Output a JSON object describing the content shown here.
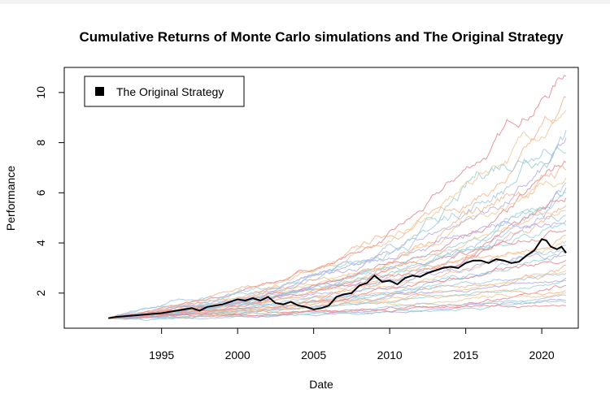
{
  "chart_data": {
    "type": "line",
    "title": "Cumulative Returns of Monte Carlo simulations and The Original Strategy",
    "xlabel": "Date",
    "ylabel": "Performance",
    "xlim": [
      1988.6,
      2022.4
    ],
    "ylim": [
      0.6,
      11.0
    ],
    "x_ticks": [
      1995,
      2000,
      2005,
      2010,
      2015,
      2020
    ],
    "y_ticks": [
      2,
      4,
      6,
      8,
      10
    ],
    "grid": false,
    "legend": {
      "position": "top-left",
      "entries": [
        {
          "label": "The Original Strategy",
          "color": "#000000"
        }
      ]
    },
    "simulation_colors": [
      "#e6828c",
      "#f5b48c",
      "#f0c896",
      "#a0c8e6",
      "#b4aae6",
      "#96d2d2"
    ],
    "simulation_endpoints": [
      10.65,
      9.8,
      9.3,
      8.5,
      8.2,
      7.6,
      7.2,
      6.9,
      6.6,
      6.4,
      6.2,
      6.0,
      5.8,
      5.5,
      5.3,
      5.1,
      4.9,
      4.7,
      4.5,
      4.3,
      4.1,
      3.9,
      3.7,
      3.5,
      3.3,
      3.1,
      2.9,
      2.8,
      2.6,
      2.5,
      2.3,
      2.1,
      2.0,
      1.9,
      1.7,
      1.6,
      1.5
    ],
    "series": [
      {
        "name": "The Original Strategy",
        "color": "#000000",
        "x": [
          1991.5,
          1992.0,
          1993.0,
          1994.0,
          1995.0,
          1996.0,
          1997.0,
          1997.5,
          1998.0,
          1999.0,
          2000.0,
          2000.5,
          2001.0,
          2001.5,
          2002.0,
          2002.5,
          2003.0,
          2003.5,
          2004.0,
          2004.5,
          2005.0,
          2005.5,
          2006.0,
          2006.5,
          2007.0,
          2007.5,
          2008.0,
          2008.5,
          2009.0,
          2009.5,
          2010.0,
          2010.5,
          2011.0,
          2011.5,
          2012.0,
          2012.5,
          2013.0,
          2013.5,
          2014.0,
          2014.5,
          2015.0,
          2015.5,
          2016.0,
          2016.5,
          2017.0,
          2017.5,
          2018.0,
          2018.5,
          2019.0,
          2019.5,
          2020.0,
          2020.3,
          2020.6,
          2021.0,
          2021.3,
          2021.6
        ],
        "y": [
          1.0,
          1.05,
          1.1,
          1.15,
          1.2,
          1.3,
          1.4,
          1.3,
          1.45,
          1.55,
          1.75,
          1.7,
          1.8,
          1.7,
          1.85,
          1.6,
          1.55,
          1.65,
          1.5,
          1.45,
          1.35,
          1.4,
          1.5,
          1.85,
          1.95,
          2.0,
          2.3,
          2.4,
          2.7,
          2.45,
          2.5,
          2.35,
          2.6,
          2.7,
          2.65,
          2.8,
          2.9,
          3.0,
          3.05,
          3.0,
          3.2,
          3.3,
          3.3,
          3.2,
          3.35,
          3.3,
          3.2,
          3.25,
          3.5,
          3.7,
          4.15,
          4.1,
          3.85,
          3.75,
          3.85,
          3.6
        ]
      }
    ]
  }
}
